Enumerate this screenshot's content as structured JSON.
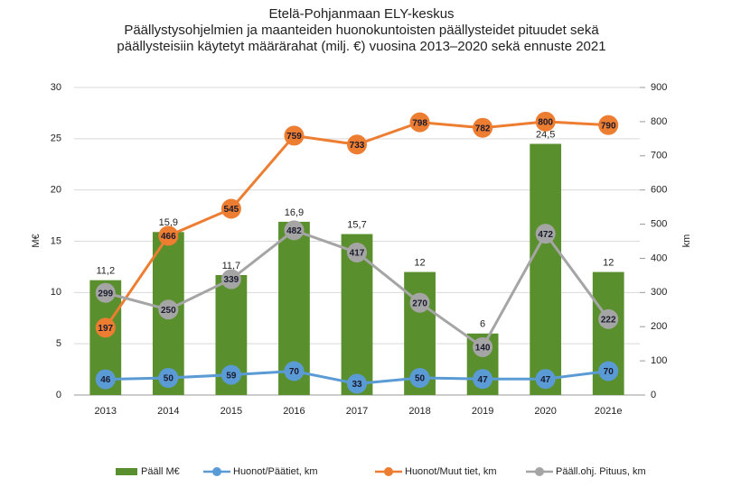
{
  "chart_data": {
    "type": "bar",
    "title": [
      "Etelä-Pohjanmaan ELY-keskus",
      "Päällystysohjelmien ja maanteiden huonokuntoisten päällysteidet pituudet sekä",
      "päällysteisiin käytetyt määrärahat (milj. €) vuosina 2013–2020 sekä ennuste 2021"
    ],
    "ylabel": "M€",
    "y2label": "km",
    "categories": [
      "2013",
      "2014",
      "2015",
      "2016",
      "2017",
      "2018",
      "2019",
      "2020",
      "2021e"
    ],
    "ylim": [
      0,
      30
    ],
    "yticks": [
      0,
      5,
      10,
      15,
      20,
      25,
      30
    ],
    "y2lim": [
      0,
      900
    ],
    "y2ticks": [
      0,
      100,
      200,
      300,
      400,
      500,
      600,
      700,
      800,
      900
    ],
    "grid": true,
    "legend": "bottom",
    "series": [
      {
        "name": "Pääll M€",
        "type": "bar",
        "color": "#5a8f2e",
        "values": [
          11.2,
          15.9,
          11.7,
          16.9,
          15.7,
          12,
          6,
          24.5,
          12
        ],
        "value_labels": [
          "11,2",
          "15,9",
          "11,7",
          "16,9",
          "15,7",
          "12",
          "6",
          "24,5",
          "12"
        ]
      },
      {
        "name": "Huonot/Päätiet, km",
        "type": "line",
        "axis": "y2",
        "color": "#5b9bd5",
        "values": [
          46,
          50,
          59,
          70,
          33,
          50,
          47,
          47,
          70
        ]
      },
      {
        "name": "Huonot/Muut tiet, km",
        "type": "line",
        "axis": "y2",
        "color": "#ed7d31",
        "values": [
          197,
          466,
          545,
          759,
          733,
          798,
          782,
          800,
          790
        ]
      },
      {
        "name": "Pääll.ohj. Pituus, km",
        "type": "line",
        "axis": "y2",
        "color": "#a5a5a5",
        "values": [
          299,
          250,
          339,
          482,
          417,
          270,
          140,
          472,
          222
        ]
      }
    ]
  }
}
